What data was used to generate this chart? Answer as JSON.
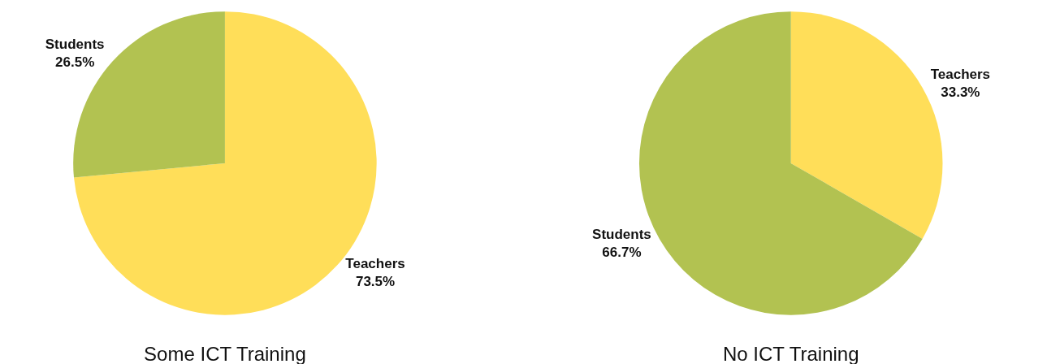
{
  "chart_data": [
    {
      "type": "pie",
      "title": "Some ICT Training",
      "categories": [
        "Teachers",
        "Students"
      ],
      "values": [
        73.5,
        26.5
      ],
      "value_labels": [
        "73.5%",
        "26.5%"
      ],
      "colors": [
        "#ffde59",
        "#b2c251"
      ],
      "legend": false
    },
    {
      "type": "pie",
      "title": "No ICT Training",
      "categories": [
        "Teachers",
        "Students"
      ],
      "values": [
        33.3,
        66.7
      ],
      "value_labels": [
        "33.3%",
        "66.7%"
      ],
      "colors": [
        "#ffde59",
        "#b2c251"
      ],
      "legend": false
    }
  ]
}
